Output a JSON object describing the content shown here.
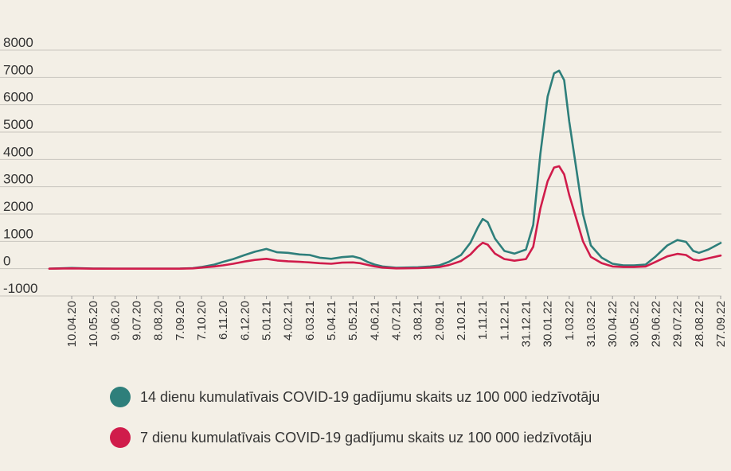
{
  "chart_data": {
    "type": "line",
    "title": "",
    "xlabel": "",
    "ylabel": "",
    "ylim": [
      -1000,
      8000
    ],
    "yticks": [
      -1000,
      0,
      1000,
      2000,
      3000,
      4000,
      5000,
      6000,
      7000,
      8000
    ],
    "ytick_labels": [
      "-1000",
      "0",
      "1000",
      "2000",
      "3000",
      "4000",
      "5000",
      "6000",
      "7000",
      "8000"
    ],
    "xlim": [
      "2020-03-10",
      "2022-09-27"
    ],
    "xticks": [
      "2020-04-10",
      "2020-05-10",
      "2020-06-09",
      "2020-07-09",
      "2020-08-08",
      "2020-09-07",
      "2020-10-07",
      "2020-11-06",
      "2020-12-06",
      "2021-01-05",
      "2021-02-04",
      "2021-03-06",
      "2021-04-05",
      "2021-05-05",
      "2021-06-04",
      "2021-07-04",
      "2021-08-03",
      "2021-09-02",
      "2021-10-02",
      "2021-11-01",
      "2021-12-01",
      "2021-12-31",
      "2022-01-30",
      "2022-03-01",
      "2022-03-31",
      "2022-04-30",
      "2022-05-30",
      "2022-06-29",
      "2022-07-29",
      "2022-08-28",
      "2022-09-27"
    ],
    "xtick_labels": [
      "10.04.20",
      "10.05.20",
      "9.06.20",
      "9.07.20",
      "8.08.20",
      "7.09.20",
      "7.10.20",
      "6.11.20",
      "6.12.20",
      "5.01.21",
      "4.02.21",
      "6.03.21",
      "5.04.21",
      "5.05.21",
      "4.06.21",
      "4.07.21",
      "3.08.21",
      "2.09.21",
      "2.10.21",
      "1.11.21",
      "1.12.21",
      "31.12.21",
      "30.01.22",
      "1.03.22",
      "31.03.22",
      "30.04.22",
      "30.05.22",
      "29.06.22",
      "29.07.22",
      "28.08.22",
      "27.09.22"
    ],
    "grid": "horizontal",
    "legend_position": "bottom",
    "series": [
      {
        "name": "14 dienu kumulatīvais COVID-19 gadījumu skaits uz 100 000 iedzīvotāju",
        "color": "#2e7f7b",
        "points": [
          [
            "2020-03-10",
            0
          ],
          [
            "2020-04-10",
            25
          ],
          [
            "2020-05-10",
            5
          ],
          [
            "2020-06-09",
            0
          ],
          [
            "2020-07-09",
            0
          ],
          [
            "2020-08-08",
            0
          ],
          [
            "2020-09-07",
            5
          ],
          [
            "2020-09-25",
            20
          ],
          [
            "2020-10-07",
            60
          ],
          [
            "2020-10-25",
            150
          ],
          [
            "2020-11-06",
            250
          ],
          [
            "2020-11-20",
            350
          ],
          [
            "2020-12-06",
            500
          ],
          [
            "2020-12-20",
            620
          ],
          [
            "2021-01-05",
            720
          ],
          [
            "2021-01-20",
            600
          ],
          [
            "2021-02-04",
            580
          ],
          [
            "2021-02-20",
            520
          ],
          [
            "2021-03-06",
            500
          ],
          [
            "2021-03-20",
            400
          ],
          [
            "2021-04-05",
            360
          ],
          [
            "2021-04-20",
            420
          ],
          [
            "2021-05-05",
            450
          ],
          [
            "2021-05-15",
            380
          ],
          [
            "2021-05-25",
            250
          ],
          [
            "2021-06-04",
            150
          ],
          [
            "2021-06-15",
            80
          ],
          [
            "2021-07-04",
            30
          ],
          [
            "2021-08-03",
            50
          ],
          [
            "2021-08-20",
            80
          ],
          [
            "2021-09-02",
            120
          ],
          [
            "2021-09-15",
            250
          ],
          [
            "2021-10-02",
            500
          ],
          [
            "2021-10-15",
            950
          ],
          [
            "2021-10-25",
            1500
          ],
          [
            "2021-11-01",
            1820
          ],
          [
            "2021-11-08",
            1700
          ],
          [
            "2021-11-18",
            1100
          ],
          [
            "2021-12-01",
            650
          ],
          [
            "2021-12-15",
            550
          ],
          [
            "2021-12-31",
            700
          ],
          [
            "2022-01-10",
            1600
          ],
          [
            "2022-01-20",
            4200
          ],
          [
            "2022-01-30",
            6300
          ],
          [
            "2022-02-08",
            7150
          ],
          [
            "2022-02-15",
            7250
          ],
          [
            "2022-02-22",
            6900
          ],
          [
            "2022-03-01",
            5400
          ],
          [
            "2022-03-10",
            3800
          ],
          [
            "2022-03-20",
            2000
          ],
          [
            "2022-03-31",
            850
          ],
          [
            "2022-04-15",
            400
          ],
          [
            "2022-04-30",
            180
          ],
          [
            "2022-05-15",
            120
          ],
          [
            "2022-05-30",
            120
          ],
          [
            "2022-06-15",
            150
          ],
          [
            "2022-06-29",
            450
          ],
          [
            "2022-07-15",
            850
          ],
          [
            "2022-07-29",
            1050
          ],
          [
            "2022-08-10",
            980
          ],
          [
            "2022-08-20",
            650
          ],
          [
            "2022-08-28",
            580
          ],
          [
            "2022-09-10",
            700
          ],
          [
            "2022-09-27",
            940
          ]
        ]
      },
      {
        "name": "7 dienu kumulatīvais COVID-19 gadījumu skaits uz 100 000 iedzīvotāju",
        "color": "#d01c4b",
        "points": [
          [
            "2020-03-10",
            0
          ],
          [
            "2020-04-10",
            10
          ],
          [
            "2020-05-10",
            0
          ],
          [
            "2020-06-09",
            0
          ],
          [
            "2020-07-09",
            0
          ],
          [
            "2020-08-08",
            0
          ],
          [
            "2020-09-07",
            0
          ],
          [
            "2020-09-25",
            10
          ],
          [
            "2020-10-07",
            40
          ],
          [
            "2020-10-25",
            80
          ],
          [
            "2020-11-06",
            120
          ],
          [
            "2020-11-20",
            180
          ],
          [
            "2020-12-06",
            260
          ],
          [
            "2020-12-20",
            320
          ],
          [
            "2021-01-05",
            360
          ],
          [
            "2021-01-20",
            300
          ],
          [
            "2021-02-04",
            270
          ],
          [
            "2021-02-20",
            250
          ],
          [
            "2021-03-06",
            230
          ],
          [
            "2021-03-20",
            200
          ],
          [
            "2021-04-05",
            180
          ],
          [
            "2021-04-20",
            220
          ],
          [
            "2021-05-05",
            230
          ],
          [
            "2021-05-15",
            200
          ],
          [
            "2021-05-25",
            140
          ],
          [
            "2021-06-04",
            80
          ],
          [
            "2021-06-15",
            40
          ],
          [
            "2021-07-04",
            10
          ],
          [
            "2021-08-03",
            20
          ],
          [
            "2021-08-20",
            40
          ],
          [
            "2021-09-02",
            60
          ],
          [
            "2021-09-15",
            130
          ],
          [
            "2021-10-02",
            280
          ],
          [
            "2021-10-15",
            520
          ],
          [
            "2021-10-25",
            800
          ],
          [
            "2021-11-01",
            950
          ],
          [
            "2021-11-08",
            880
          ],
          [
            "2021-11-18",
            550
          ],
          [
            "2021-12-01",
            350
          ],
          [
            "2021-12-15",
            290
          ],
          [
            "2021-12-31",
            350
          ],
          [
            "2022-01-10",
            800
          ],
          [
            "2022-01-20",
            2200
          ],
          [
            "2022-01-30",
            3200
          ],
          [
            "2022-02-08",
            3700
          ],
          [
            "2022-02-15",
            3750
          ],
          [
            "2022-02-22",
            3450
          ],
          [
            "2022-03-01",
            2700
          ],
          [
            "2022-03-10",
            1900
          ],
          [
            "2022-03-20",
            1000
          ],
          [
            "2022-03-31",
            430
          ],
          [
            "2022-04-15",
            200
          ],
          [
            "2022-04-30",
            80
          ],
          [
            "2022-05-15",
            60
          ],
          [
            "2022-05-30",
            60
          ],
          [
            "2022-06-15",
            80
          ],
          [
            "2022-06-29",
            250
          ],
          [
            "2022-07-15",
            450
          ],
          [
            "2022-07-29",
            540
          ],
          [
            "2022-08-10",
            500
          ],
          [
            "2022-08-20",
            330
          ],
          [
            "2022-08-28",
            300
          ],
          [
            "2022-09-10",
            380
          ],
          [
            "2022-09-27",
            480
          ]
        ]
      }
    ]
  }
}
